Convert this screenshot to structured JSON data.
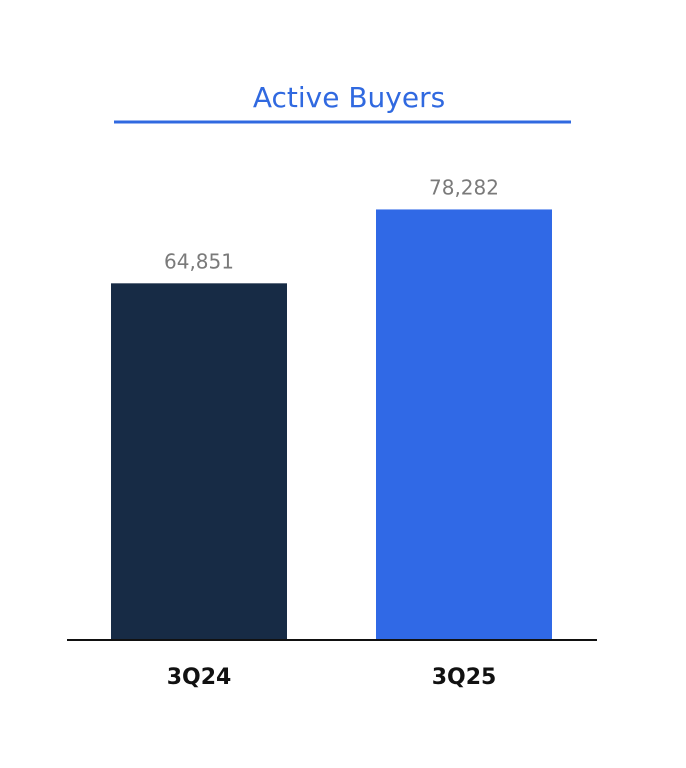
{
  "chart_data": {
    "type": "bar",
    "title": "Active Buyers",
    "categories": [
      "3Q24",
      "3Q25"
    ],
    "values": [
      64851,
      78282
    ],
    "value_labels": [
      "64,851",
      "78,282"
    ],
    "xlabel": "",
    "ylabel": "",
    "ylim": [
      0,
      80000
    ],
    "grid": false,
    "legend": "none",
    "colors": [
      "#172b45",
      "#3069e6"
    ],
    "title_color": "#3069e0",
    "title_underline_color": "#3069e0"
  }
}
